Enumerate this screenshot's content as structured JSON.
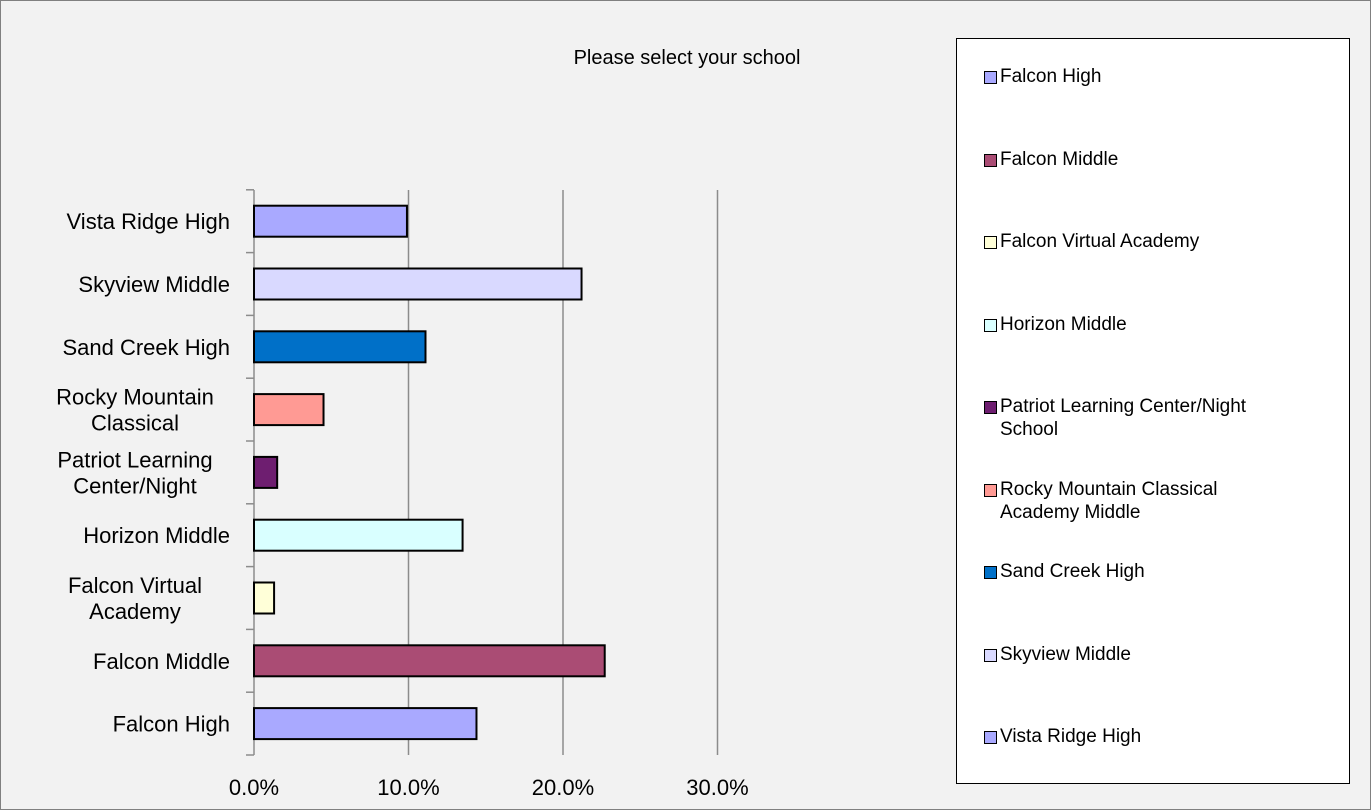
{
  "chart_data": {
    "type": "bar",
    "orientation": "horizontal",
    "title": "Please select your school",
    "xlabel": "",
    "ylabel": "",
    "xlim": [
      0,
      30
    ],
    "x_ticks": [
      "0.0%",
      "10.0%",
      "20.0%",
      "30.0%"
    ],
    "categories": [
      [
        "Falcon High"
      ],
      [
        "Falcon Middle"
      ],
      [
        "Falcon Virtual",
        "Academy"
      ],
      [
        "Horizon Middle"
      ],
      [
        "Patriot Learning",
        "Center/Night"
      ],
      [
        "Rocky Mountain",
        "Classical"
      ],
      [
        "Sand Creek High"
      ],
      [
        "Skyview Middle"
      ],
      [
        "Vista Ridge High"
      ]
    ],
    "values": [
      14.4,
      22.7,
      1.3,
      13.5,
      1.5,
      4.5,
      11.1,
      21.2,
      9.9
    ],
    "colors": [
      "#a9a9ff",
      "#aa4c74",
      "#ffffd8",
      "#d9ffff",
      "#6e1e70",
      "#ff9a94",
      "#0070c8",
      "#d9d9ff",
      "#a9a9ff"
    ],
    "grid": "vertical",
    "legend_position": "right",
    "legend": [
      [
        "Falcon High"
      ],
      [
        "Falcon Middle"
      ],
      [
        "Falcon Virtual Academy"
      ],
      [
        "Horizon Middle"
      ],
      [
        "Patriot Learning Center/Night",
        "School"
      ],
      [
        "Rocky Mountain Classical",
        "Academy Middle"
      ],
      [
        "Sand Creek High"
      ],
      [
        "Skyview Middle"
      ],
      [
        "Vista Ridge High"
      ]
    ]
  }
}
